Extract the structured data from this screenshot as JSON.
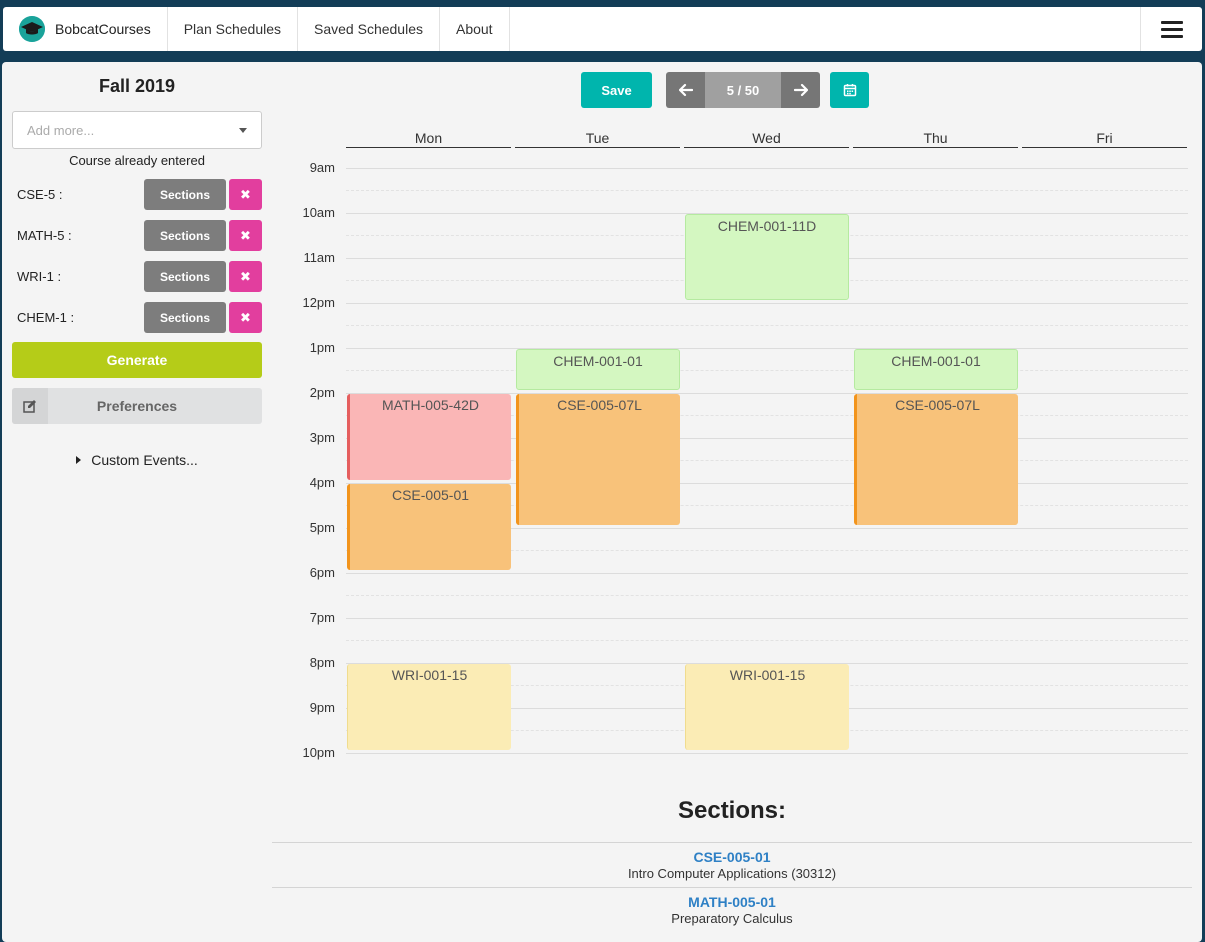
{
  "navbar": {
    "brand": "BobcatCourses",
    "links": [
      "Plan Schedules",
      "Saved Schedules",
      "About"
    ]
  },
  "sidebar": {
    "term": "Fall 2019",
    "search_placeholder": "Add more...",
    "already_entered": "Course already entered",
    "courses": [
      {
        "label": "CSE-5 :",
        "sections_label": "Sections"
      },
      {
        "label": "MATH-5 :",
        "sections_label": "Sections"
      },
      {
        "label": "WRI-1 :",
        "sections_label": "Sections"
      },
      {
        "label": "CHEM-1 :",
        "sections_label": "Sections"
      }
    ],
    "generate_label": "Generate",
    "preferences_label": "Preferences",
    "custom_events_label": "Custom Events..."
  },
  "toolbar": {
    "save_label": "Save",
    "page_indicator": "5 / 50"
  },
  "calendar": {
    "days": [
      "Mon",
      "Tue",
      "Wed",
      "Thu",
      "Fri"
    ],
    "times": [
      "9am",
      "10am",
      "11am",
      "12pm",
      "1pm",
      "2pm",
      "3pm",
      "4pm",
      "5pm",
      "6pm",
      "7pm",
      "8pm",
      "9pm",
      "10pm"
    ],
    "events": [
      {
        "label": "CHEM-001-11D",
        "day": "Wed",
        "start": "10:00",
        "end": "11:50",
        "color": "#d4f7c1"
      },
      {
        "label": "CHEM-001-01",
        "day": "Tue",
        "start": "13:00",
        "end": "13:50",
        "color": "#d4f7c1"
      },
      {
        "label": "CHEM-001-01",
        "day": "Thu",
        "start": "13:00",
        "end": "13:50",
        "color": "#d4f7c1"
      },
      {
        "label": "MATH-005-42D",
        "day": "Mon",
        "start": "14:00",
        "end": "15:50",
        "color": "#fab6b6"
      },
      {
        "label": "CSE-005-07L",
        "day": "Tue",
        "start": "14:00",
        "end": "16:50",
        "color": "#f8c27a"
      },
      {
        "label": "CSE-005-07L",
        "day": "Thu",
        "start": "14:00",
        "end": "16:50",
        "color": "#f8c27a"
      },
      {
        "label": "CSE-005-01",
        "day": "Mon",
        "start": "16:00",
        "end": "17:50",
        "color": "#f8c27a"
      },
      {
        "label": "WRI-001-15",
        "day": "Mon",
        "start": "20:00",
        "end": "21:50",
        "color": "#fbecb5"
      },
      {
        "label": "WRI-001-15",
        "day": "Wed",
        "start": "20:00",
        "end": "21:50",
        "color": "#fbecb5"
      }
    ]
  },
  "sections": {
    "title": "Sections:",
    "items": [
      {
        "code": "CSE-005-01",
        "name": "Intro Computer Applications (30312)"
      },
      {
        "code": "MATH-005-01",
        "name": "Preparatory Calculus"
      }
    ]
  }
}
